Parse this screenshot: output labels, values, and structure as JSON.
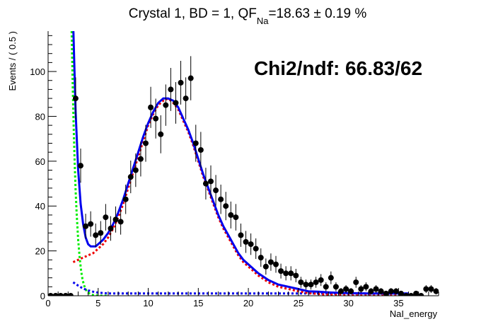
{
  "chart_data": {
    "type": "scatter",
    "title": {
      "prefix": "Crystal 1, BD = 1, QF",
      "subscript": "Na",
      "suffix": "=18.63 ± 0.19 %"
    },
    "annotation": "Chi2/ndf: 66.83/62",
    "xlabel": "NaI_energy",
    "ylabel": "Events / ( 0.5 )",
    "xlim": [
      0,
      39
    ],
    "ylim": [
      0,
      118
    ],
    "xticks": [
      0,
      5,
      10,
      15,
      20,
      25,
      30,
      35
    ],
    "xtick_labels": [
      "0",
      "5",
      "10",
      "15",
      "20",
      "25",
      "30",
      "35"
    ],
    "yticks": [
      0,
      20,
      40,
      60,
      80,
      100
    ],
    "ytick_labels": [
      "0",
      "20",
      "40",
      "60",
      "80",
      "100"
    ],
    "grid": false,
    "colors": {
      "data": "#000000",
      "total_fit": "#0000ee",
      "signal_component": "#ee0000",
      "exponential_component": "#00ee00",
      "flat_component": "#0000ee"
    },
    "series": [
      {
        "x": [
          0.25,
          0.75,
          1.25,
          1.75,
          2.25,
          2.75,
          3.25,
          3.75,
          4.25,
          4.75,
          5.25,
          5.75,
          6.25,
          6.75,
          7.25,
          7.75,
          8.25,
          8.75,
          9.25,
          9.75,
          10.25,
          10.75,
          11.25,
          11.75,
          12.25,
          12.75,
          13.25,
          13.75,
          14.25,
          14.75,
          15.25,
          15.75,
          16.25,
          16.75,
          17.25,
          17.75,
          18.25,
          18.75,
          19.25,
          19.75,
          20.25,
          20.75,
          21.25,
          21.75,
          22.25,
          22.75,
          23.25,
          23.75,
          24.25,
          24.75,
          25.25,
          25.75,
          26.25,
          26.75,
          27.25,
          27.75,
          28.25,
          28.75,
          29.25,
          29.75,
          30.25,
          30.75,
          31.25,
          31.75,
          32.25,
          32.75,
          33.25,
          33.75,
          34.25,
          34.75,
          35.25,
          35.75,
          36.25,
          36.75,
          37.25,
          37.75,
          38.25,
          38.75
        ],
        "y": [
          0,
          0,
          0,
          0,
          0,
          88,
          58,
          31,
          32,
          27,
          28,
          35,
          30,
          34,
          33,
          43,
          53,
          56,
          61,
          68,
          84,
          79,
          72,
          85,
          92,
          86,
          95,
          88,
          97,
          68,
          65,
          50,
          51,
          47,
          43,
          40,
          36,
          35,
          27,
          24,
          23,
          21,
          17,
          13,
          15,
          14,
          11,
          10,
          10,
          9,
          6,
          5,
          5,
          6,
          7,
          4,
          8,
          4,
          2,
          3,
          2,
          6,
          3,
          4,
          2,
          3,
          2,
          1,
          2,
          2,
          1,
          0,
          0,
          1,
          0,
          3,
          3,
          2
        ]
      },
      {
        "x": [
          2.5,
          2.75,
          3.0,
          3.25,
          3.5,
          3.75,
          4.0,
          4.25,
          4.5,
          4.75,
          5.0,
          5.5,
          6.0,
          6.5,
          7.0,
          7.5,
          8.0,
          8.5,
          9.0,
          9.5,
          10.0,
          10.5,
          11.0,
          11.5,
          12.0,
          12.5,
          13.0,
          13.5,
          14.0,
          14.5,
          15.0,
          15.5,
          16.0,
          16.5,
          17.0,
          17.5,
          18.0,
          18.5,
          19.0,
          19.5,
          20.0,
          21.0,
          22.0,
          23.0,
          24.0,
          25.0,
          26.0,
          27.0,
          28.0,
          29.0,
          30.0,
          31.0,
          32.0,
          33.0,
          34.0,
          35.0,
          36.0
        ],
        "y": [
          122,
          82,
          56,
          41,
          32,
          26,
          23,
          22,
          22,
          22,
          23,
          25,
          28,
          32,
          37,
          43,
          50,
          57,
          64,
          71,
          77,
          82,
          86,
          88,
          88,
          87,
          84,
          79,
          74,
          68,
          61,
          54,
          48,
          42,
          36,
          31,
          27,
          23,
          19,
          16,
          14,
          10,
          7,
          5,
          4,
          3,
          2,
          1.8,
          1.5,
          1.3,
          1.2,
          1.1,
          1.0,
          1.0,
          1.0,
          1.0,
          1.0
        ]
      },
      {
        "x": [
          2.5,
          3.0,
          3.5,
          4.0,
          4.5,
          5.0,
          5.5,
          6.0,
          6.5,
          7.0,
          7.5,
          8.0,
          8.5,
          9.0,
          9.5,
          10.0,
          10.5,
          11.0,
          11.5,
          12.0,
          12.5,
          13.0,
          13.5,
          14.0,
          14.5,
          15.0,
          15.5,
          16.0,
          16.5,
          17.0,
          17.5,
          18.0,
          18.5,
          19.0,
          19.5,
          20.0,
          21.0,
          22.0,
          23.0,
          24.0,
          25.0,
          26.0,
          27.0,
          28.0,
          29.0,
          30.0,
          31.0,
          32.0,
          33.0,
          34.0,
          35.0
        ],
        "y": [
          15,
          16,
          17,
          18,
          19,
          21,
          23,
          26,
          30,
          35,
          41,
          48,
          55,
          62,
          69,
          76,
          81,
          85,
          87,
          88,
          86,
          83,
          78,
          73,
          67,
          60,
          53,
          47,
          41,
          35,
          30,
          26,
          22,
          18,
          15,
          13,
          9,
          6,
          4,
          3,
          2,
          1.2,
          0.8,
          0.5,
          0.3,
          0.2,
          0.1,
          0.1,
          0.1,
          0.1,
          0.1
        ]
      },
      {
        "x": [
          2.35,
          2.45,
          2.55,
          2.65,
          2.75,
          2.85,
          3.0,
          3.15,
          3.3,
          3.45,
          3.6,
          3.8,
          4.0,
          4.25,
          4.5,
          5.0,
          5.5,
          6.0
        ],
        "y": [
          118,
          95,
          76,
          60,
          47,
          37,
          25,
          17,
          11,
          7,
          4.5,
          2.5,
          1.4,
          0.7,
          0.3,
          0.1,
          0,
          0
        ]
      },
      {
        "x": [
          2.5,
          3.0,
          3.5,
          4.0,
          4.5,
          5.0,
          5.5,
          6.0,
          7.0,
          8.0,
          10.0,
          15.0,
          20.0,
          25.0,
          30.0,
          35.0
        ],
        "y": [
          6,
          4.5,
          3.2,
          2.4,
          1.8,
          1.4,
          1.2,
          1.0,
          1.0,
          1.0,
          1.0,
          1.0,
          1.0,
          1.0,
          1.0,
          1.0
        ]
      }
    ]
  }
}
